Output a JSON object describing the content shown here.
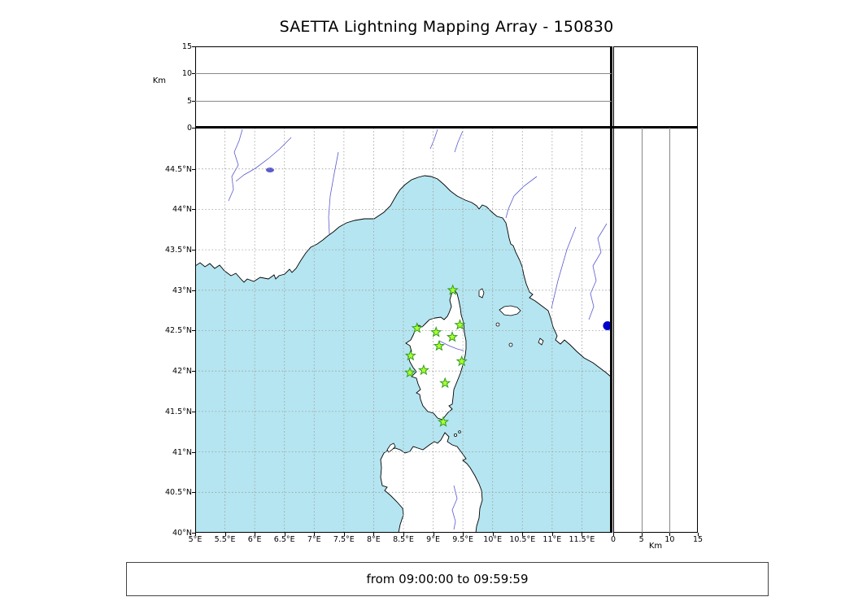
{
  "title": "SAETTA Lightning Mapping Array - 150830",
  "caption": "from 09:00:00 to 09:59:59",
  "colors": {
    "sea": "#b5e5f0",
    "land": "#ffffff",
    "coast": "#000000",
    "grid": "#9a9a9a",
    "river": "#5a5ad0",
    "station_fill": "#adff2f",
    "station_stroke": "#2f9e1f",
    "point": "#0000cc"
  },
  "alt_axis": {
    "label": "Km",
    "max": 15,
    "ticks": [
      {
        "value": 0,
        "label": "0"
      },
      {
        "value": 5,
        "label": "5"
      },
      {
        "value": 10,
        "label": "10"
      },
      {
        "value": 15,
        "label": "15"
      }
    ]
  },
  "map": {
    "lon_min": 5,
    "lon_max": 12,
    "lat_min": 40,
    "lat_max": 45,
    "lon_ticks": [
      {
        "value": 5,
        "label": "5°E"
      },
      {
        "value": 5.5,
        "label": "5.5°E"
      },
      {
        "value": 6,
        "label": "6°E"
      },
      {
        "value": 6.5,
        "label": "6.5°E"
      },
      {
        "value": 7,
        "label": "7°E"
      },
      {
        "value": 7.5,
        "label": "7.5°E"
      },
      {
        "value": 8,
        "label": "8°E"
      },
      {
        "value": 8.5,
        "label": "8.5°E"
      },
      {
        "value": 9,
        "label": "9°E"
      },
      {
        "value": 9.5,
        "label": "9.5°E"
      },
      {
        "value": 10,
        "label": "10°E"
      },
      {
        "value": 10.5,
        "label": "10.5°E"
      },
      {
        "value": 11,
        "label": "11°E"
      },
      {
        "value": 11.5,
        "label": "11.5°E"
      }
    ],
    "lat_ticks": [
      {
        "value": 40,
        "label": "40°N"
      },
      {
        "value": 40.5,
        "label": "40.5°N"
      },
      {
        "value": 41,
        "label": "41°N"
      },
      {
        "value": 41.5,
        "label": "41.5°N"
      },
      {
        "value": 42,
        "label": "42°N"
      },
      {
        "value": 42.5,
        "label": "42.5°N"
      },
      {
        "value": 43,
        "label": "43°N"
      },
      {
        "value": 43.5,
        "label": "43.5°N"
      },
      {
        "value": 44,
        "label": "44°N"
      },
      {
        "value": 44.5,
        "label": "44.5°N"
      }
    ]
  },
  "chart_data": {
    "type": "scatter",
    "title": "SAETTA Lightning Mapping Array - 150830",
    "time_window": "from 09:00:00 to 09:59:59",
    "panels": {
      "top": {
        "x": "longitude",
        "y": "altitude_km",
        "ylim": [
          0,
          15
        ],
        "yticks": [
          0,
          5,
          10,
          15
        ],
        "ylabel": "Km"
      },
      "main": {
        "x": "longitude",
        "y": "latitude",
        "xlim": [
          5,
          12
        ],
        "ylim": [
          40,
          45
        ],
        "grid": true,
        "region": "Corsica / Ligurian-Tyrrhenian Sea"
      },
      "right": {
        "x": "altitude_km",
        "y": "latitude",
        "xlim": [
          0,
          15
        ],
        "xticks": [
          0,
          5,
          10,
          15
        ],
        "xlabel": "Km"
      }
    },
    "stations": [
      {
        "lon": 9.33,
        "lat": 43.0
      },
      {
        "lon": 8.73,
        "lat": 42.53
      },
      {
        "lon": 9.05,
        "lat": 42.48
      },
      {
        "lon": 9.45,
        "lat": 42.57
      },
      {
        "lon": 9.32,
        "lat": 42.42
      },
      {
        "lon": 9.1,
        "lat": 42.31
      },
      {
        "lon": 8.62,
        "lat": 42.19
      },
      {
        "lon": 9.48,
        "lat": 42.12
      },
      {
        "lon": 8.61,
        "lat": 41.98
      },
      {
        "lon": 8.84,
        "lat": 42.01
      },
      {
        "lon": 9.2,
        "lat": 41.85
      },
      {
        "lon": 9.17,
        "lat": 41.37
      }
    ],
    "sources": [
      {
        "lon": 11.93,
        "lat": 42.56,
        "alt_km": 0
      }
    ]
  }
}
